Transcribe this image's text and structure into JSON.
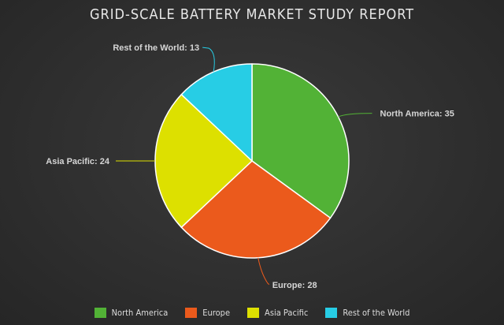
{
  "chart_data": {
    "type": "pie",
    "title": "GRID-SCALE BATTERY MARKET STUDY REPORT",
    "categories": [
      "North America",
      "Europe",
      "Asia Pacific",
      "Rest of the World"
    ],
    "values": [
      35,
      28,
      24,
      13
    ],
    "colors": [
      "#52b236",
      "#eb5a1c",
      "#dde000",
      "#27cde5"
    ],
    "data_labels": [
      "North America: 35",
      "Europe: 28",
      "Asia Pacific: 24",
      "Rest of the World: 13"
    ],
    "legend": {
      "position": "bottom",
      "entries": [
        "North America",
        "Europe",
        "Asia Pacific",
        "Rest of the World"
      ]
    }
  }
}
